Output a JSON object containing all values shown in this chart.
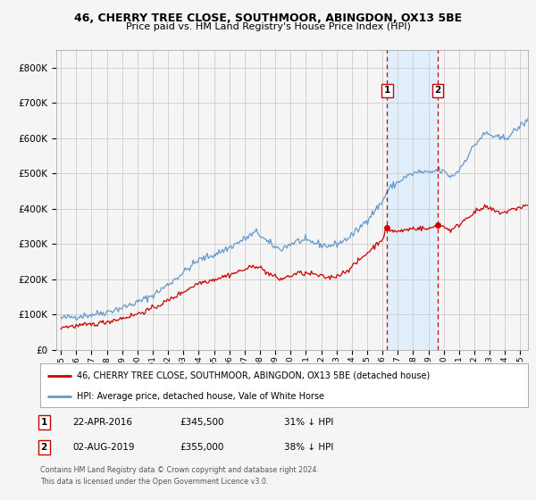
{
  "title": "46, CHERRY TREE CLOSE, SOUTHMOOR, ABINGDON, OX13 5BE",
  "subtitle": "Price paid vs. HM Land Registry's House Price Index (HPI)",
  "legend_line1": "46, CHERRY TREE CLOSE, SOUTHMOOR, ABINGDON, OX13 5BE (detached house)",
  "legend_line2": "HPI: Average price, detached house, Vale of White Horse",
  "annotation1": {
    "label": "1",
    "date": "22-APR-2016",
    "price": "£345,500",
    "note": "31% ↓ HPI",
    "x_year": 2016.3,
    "y_price": 345500
  },
  "annotation2": {
    "label": "2",
    "date": "02-AUG-2019",
    "price": "£355,000",
    "note": "38% ↓ HPI",
    "x_year": 2019.6,
    "y_price": 355000
  },
  "footnote1": "Contains HM Land Registry data © Crown copyright and database right 2024.",
  "footnote2": "This data is licensed under the Open Government Licence v3.0.",
  "hpi_color": "#6699cc",
  "price_color": "#cc0000",
  "vline_color": "#cc0000",
  "shade_color": "#ddeeff",
  "background_color": "#f5f5f5",
  "grid_color": "#cccccc",
  "ylim": [
    0,
    850000
  ],
  "yticks": [
    0,
    100000,
    200000,
    300000,
    400000,
    500000,
    600000,
    700000,
    800000
  ],
  "xlim_left": 1994.7,
  "xlim_right": 2025.5
}
